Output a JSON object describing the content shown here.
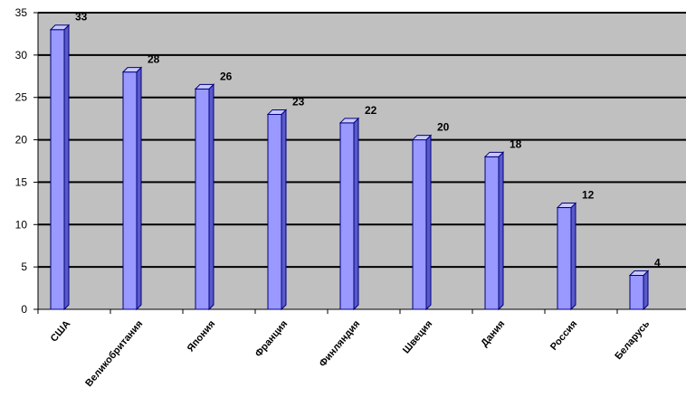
{
  "chart_data": {
    "type": "bar",
    "categories": [
      "США",
      "Великобритания",
      "Япония",
      "Франция",
      "Финляндия",
      "Швеция",
      "Дания",
      "Россия",
      "Беларусь"
    ],
    "values": [
      33,
      28,
      26,
      23,
      22,
      20,
      18,
      12,
      4
    ],
    "data_labels": [
      "33",
      "28",
      "26",
      "23",
      "22",
      "20",
      "18",
      "12",
      "4"
    ],
    "ylim": [
      0,
      35
    ],
    "yticks": [
      0,
      5,
      10,
      15,
      20,
      25,
      30,
      35
    ],
    "title": "",
    "xlabel": "",
    "ylabel": "",
    "grid": true,
    "style": "3d-column",
    "colors": {
      "plot_background": "#c0c0c0",
      "bar_front": "#9999ff",
      "bar_side": "#5a5ac8",
      "bar_top": "#c8c8ff",
      "bar_outline": "#000080",
      "gridline": "#000000"
    }
  }
}
